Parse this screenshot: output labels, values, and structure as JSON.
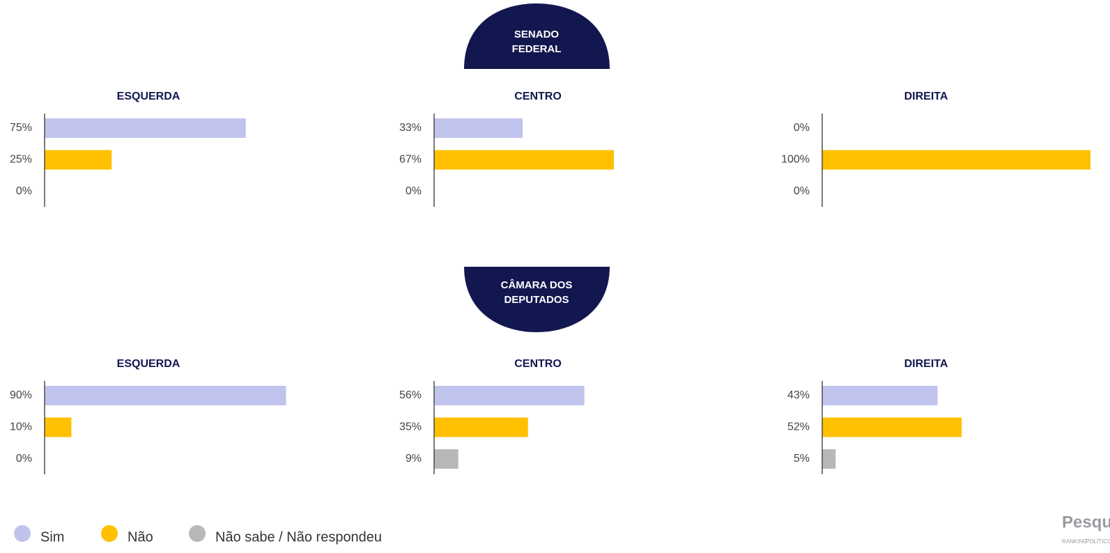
{
  "sections": [
    {
      "title_lines": [
        "SENADO",
        "FEDERAL"
      ]
    },
    {
      "title_lines": [
        "CÂMARA DOS",
        "DEPUTADOS"
      ]
    }
  ],
  "legend": [
    {
      "name": "Sim",
      "color": "#c0c4ec"
    },
    {
      "name": "Não",
      "color": "#ffc000"
    },
    {
      "name": "Não sabe / Não respondeu",
      "color": "#b8b8b8"
    }
  ],
  "logo": {
    "title": "Pesqui",
    "subtitle": [
      "RANKING",
      "POLÍTICOS"
    ]
  },
  "chart_data": [
    {
      "type": "bar",
      "orientation": "horizontal",
      "section": 0,
      "title": "ESQUERDA",
      "values": [
        75,
        25,
        0
      ],
      "value_labels": [
        "75%",
        "25%",
        "0%"
      ],
      "xlim": [
        0,
        100
      ]
    },
    {
      "type": "bar",
      "orientation": "horizontal",
      "section": 0,
      "title": "CENTRO",
      "values": [
        33,
        67,
        0
      ],
      "value_labels": [
        "33%",
        "67%",
        "0%"
      ],
      "xlim": [
        0,
        100
      ]
    },
    {
      "type": "bar",
      "orientation": "horizontal",
      "section": 0,
      "title": "DIREITA",
      "values": [
        0,
        100,
        0
      ],
      "value_labels": [
        "0%",
        "100%",
        "0%"
      ],
      "xlim": [
        0,
        100
      ]
    },
    {
      "type": "bar",
      "orientation": "horizontal",
      "section": 1,
      "title": "ESQUERDA",
      "values": [
        90,
        10,
        0
      ],
      "value_labels": [
        "90%",
        "10%",
        "0%"
      ],
      "xlim": [
        0,
        100
      ]
    },
    {
      "type": "bar",
      "orientation": "horizontal",
      "section": 1,
      "title": "CENTRO",
      "values": [
        56,
        35,
        9
      ],
      "value_labels": [
        "56%",
        "35%",
        "9%"
      ],
      "xlim": [
        0,
        100
      ]
    },
    {
      "type": "bar",
      "orientation": "horizontal",
      "section": 1,
      "title": "DIREITA",
      "values": [
        43,
        52,
        5
      ],
      "value_labels": [
        "43%",
        "52%",
        "5%"
      ],
      "xlim": [
        0,
        100
      ]
    }
  ]
}
